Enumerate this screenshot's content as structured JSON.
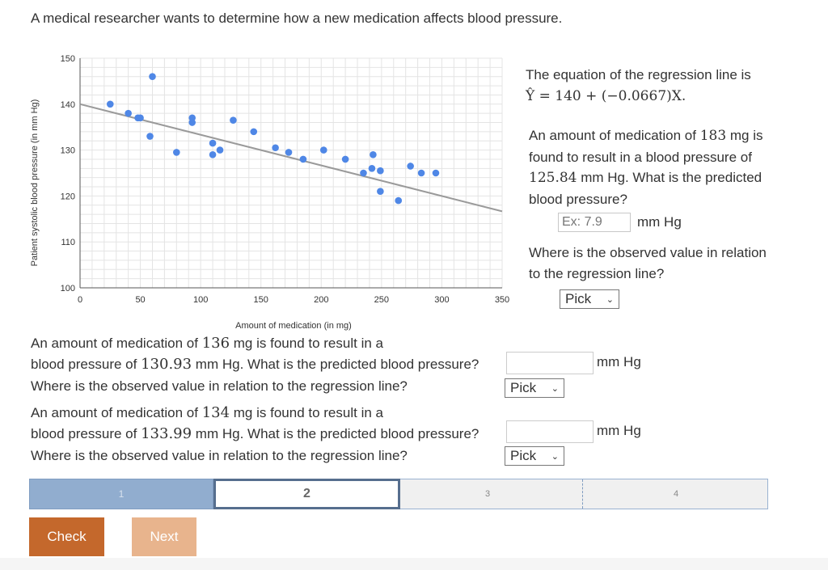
{
  "intro": "A medical researcher wants to determine how a new medication affects blood pressure.",
  "chart_data": {
    "type": "scatter",
    "xlabel": "Amount of medication (in mg)",
    "ylabel": "Patient systolic blood pressure (in mm Hg)",
    "xlim": [
      0,
      350
    ],
    "ylim": [
      100,
      150
    ],
    "xticks": [
      "0",
      "50",
      "100",
      "150",
      "200",
      "250",
      "300",
      "350"
    ],
    "yticks": [
      "100",
      "110",
      "120",
      "130",
      "140",
      "150"
    ],
    "grid": true,
    "regression_line": {
      "intercept": 140,
      "slope": -0.0667
    },
    "points": [
      [
        25,
        140
      ],
      [
        40,
        138
      ],
      [
        48,
        137
      ],
      [
        50,
        137
      ],
      [
        60,
        146
      ],
      [
        58,
        133
      ],
      [
        80,
        129.5
      ],
      [
        93,
        137
      ],
      [
        93,
        136
      ],
      [
        110,
        131.5
      ],
      [
        110,
        129
      ],
      [
        116,
        130
      ],
      [
        127,
        136.5
      ],
      [
        144,
        134
      ],
      [
        162,
        130.5
      ],
      [
        173,
        129.5
      ],
      [
        185,
        128
      ],
      [
        202,
        130
      ],
      [
        220,
        128
      ],
      [
        235,
        125
      ],
      [
        242,
        126
      ],
      [
        243,
        129
      ],
      [
        249,
        125.5
      ],
      [
        249,
        121
      ],
      [
        264,
        119
      ],
      [
        274,
        126.5
      ],
      [
        283,
        125
      ],
      [
        295,
        125
      ]
    ],
    "colors": {
      "points": "#4f87e6",
      "line": "#9a9a9a",
      "grid": "#e4e4e4"
    }
  },
  "equation": {
    "lead": "The equation of the regression line is",
    "formula": "Ŷ = 140 + (−0.0667)X."
  },
  "q1": {
    "t1": "An amount of medication of ",
    "x": "183",
    "t2": " mg is found to result in a blood pressure of ",
    "y": "125.84",
    "t3": " mm Hg. What is the predicted blood pressure?",
    "placeholder": "Ex: 7.9",
    "unit": "mm Hg"
  },
  "q1b": {
    "text": "Where is the observed value in relation to the regression line?",
    "pick": "Pick"
  },
  "q2": {
    "l1a": "An amount of medication of ",
    "x": "136",
    "l1b": " mg is found to result in a",
    "l2a": "blood pressure of ",
    "y": "130.93",
    "l2b": " mm Hg. What is the predicted blood pressure?",
    "l3": "Where is the observed value in relation to the regression line?",
    "unit": "mm Hg",
    "pick": "Pick"
  },
  "q3": {
    "l1a": "An amount of medication of ",
    "x": "134",
    "l1b": " mg is found to result in a",
    "l2a": "blood pressure of ",
    "y": "133.99",
    "l2b": " mm Hg. What is the predicted blood pressure?",
    "l3": "Where is the observed value in relation to the regression line?",
    "unit": "mm Hg",
    "pick": "Pick"
  },
  "progress": {
    "s1": "1",
    "s2": "2",
    "s3": "3",
    "s4": "4"
  },
  "buttons": {
    "check": "Check",
    "next": "Next"
  }
}
